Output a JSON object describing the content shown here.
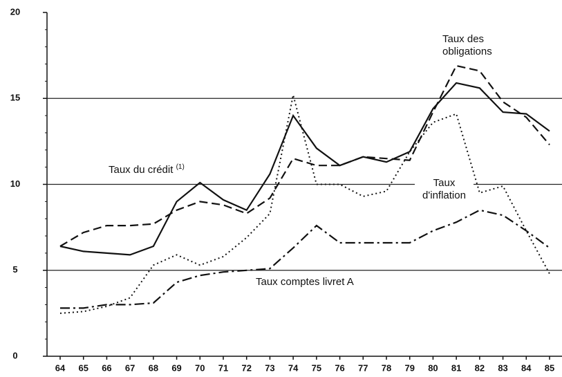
{
  "chart_data": {
    "type": "line",
    "categories": [
      "64",
      "65",
      "66",
      "67",
      "68",
      "69",
      "70",
      "71",
      "72",
      "73",
      "74",
      "75",
      "76",
      "77",
      "78",
      "79",
      "80",
      "81",
      "82",
      "83",
      "84",
      "85"
    ],
    "ylim": [
      0,
      20
    ],
    "yticks": [
      0,
      5,
      10,
      15,
      20
    ],
    "grid": true,
    "series": [
      {
        "name": "Taux du crédit",
        "name_note": "(1)",
        "color": "#111111",
        "dash": "solid",
        "values": [
          6.4,
          6.1,
          6.0,
          5.9,
          6.4,
          9.0,
          10.1,
          9.1,
          8.5,
          10.6,
          14.0,
          12.1,
          11.1,
          11.6,
          11.3,
          11.9,
          14.4,
          15.9,
          15.6,
          14.2,
          14.1,
          13.1
        ]
      },
      {
        "name": "Taux des obligations",
        "color": "#111111",
        "dash": "dashed",
        "values": [
          6.4,
          7.2,
          7.6,
          7.6,
          7.7,
          8.5,
          9.0,
          8.8,
          8.3,
          9.2,
          11.5,
          11.1,
          11.1,
          11.6,
          11.5,
          11.4,
          14.2,
          16.9,
          16.6,
          14.8,
          13.9,
          12.3
        ]
      },
      {
        "name": "Taux d'inflation",
        "color": "#111111",
        "dash": "dotted",
        "values": [
          2.5,
          2.6,
          2.9,
          3.4,
          5.3,
          5.9,
          5.3,
          5.8,
          6.9,
          8.3,
          15.2,
          10.0,
          10.0,
          9.3,
          9.6,
          11.9,
          13.6,
          14.1,
          9.5,
          9.9,
          7.3,
          4.8
        ]
      },
      {
        "name": "Taux comptes livret A",
        "color": "#111111",
        "dash": "dashdot",
        "values": [
          2.8,
          2.8,
          3.0,
          3.0,
          3.1,
          4.3,
          4.7,
          4.9,
          5.0,
          5.1,
          6.3,
          7.6,
          6.6,
          6.6,
          6.6,
          6.6,
          7.3,
          7.8,
          8.5,
          8.2,
          7.3,
          6.3
        ]
      }
    ]
  }
}
